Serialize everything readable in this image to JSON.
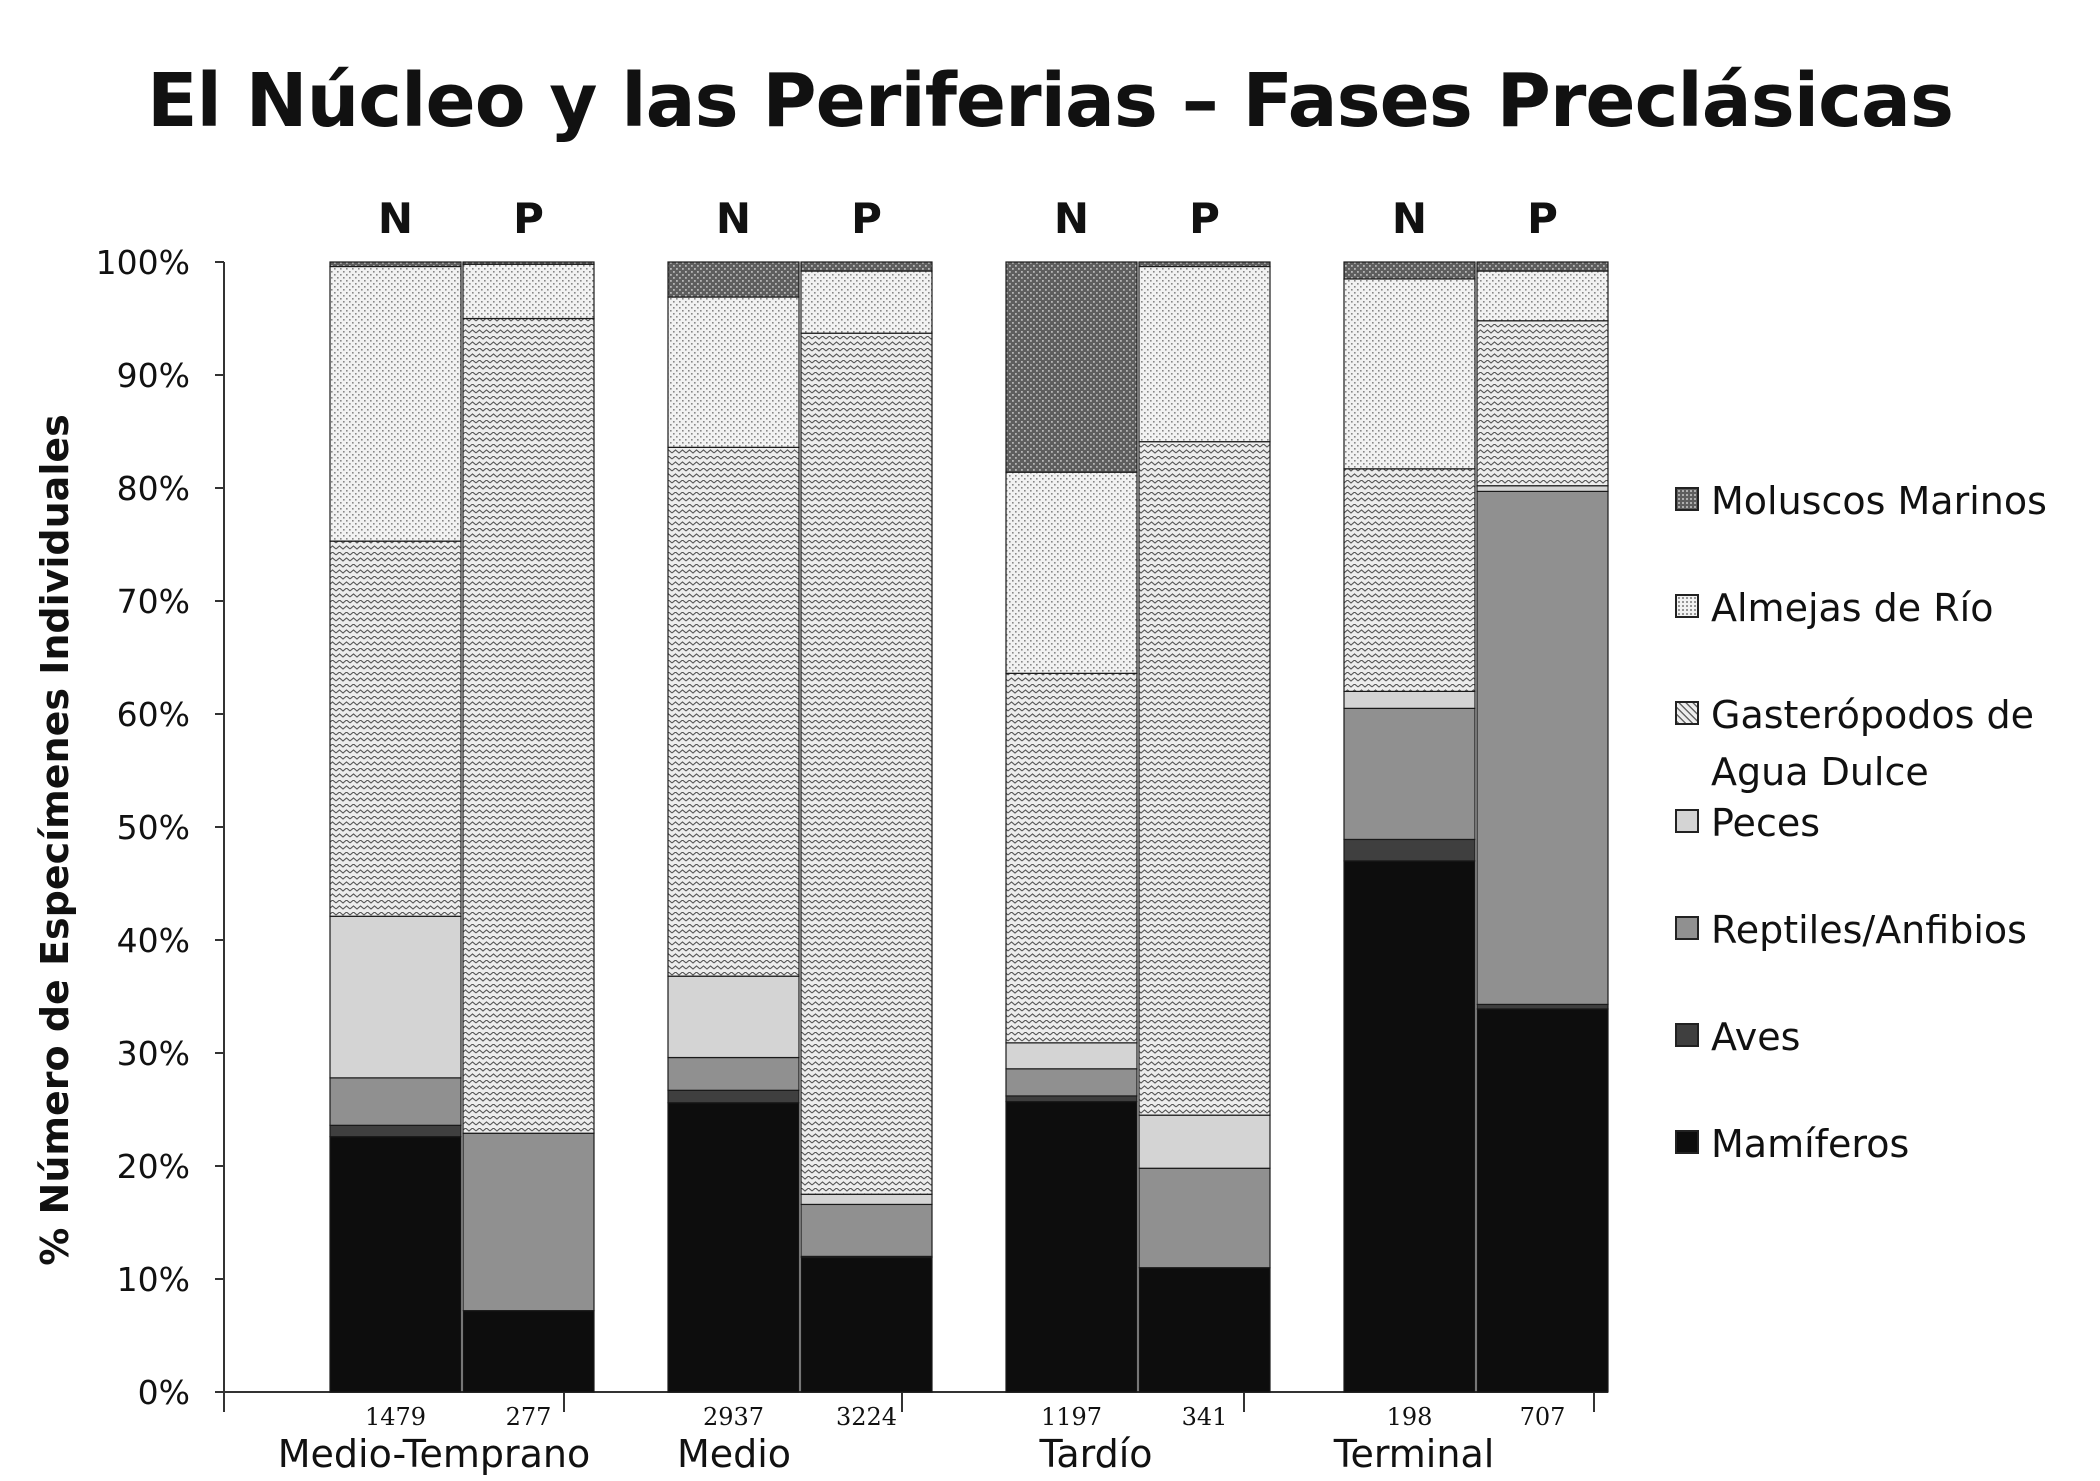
{
  "chart_data": {
    "type": "bar",
    "stacked": true,
    "title": "El Núcleo y las Periferias – Fases Preclásicas",
    "ylabel": "% Número de Especímenes Individuales",
    "ylim": [
      0,
      100
    ],
    "yticks": [
      "0%",
      "10%",
      "20%",
      "30%",
      "40%",
      "50%",
      "60%",
      "70%",
      "80%",
      "90%",
      "100%"
    ],
    "grid": false,
    "legend_position": "right",
    "groups": [
      {
        "label": "Medio-Temprano",
        "bars": [
          {
            "top": "N",
            "count": "1479",
            "values": [
              22.6,
              1.0,
              4.2,
              14.3,
              33.2,
              24.3,
              0.4
            ]
          },
          {
            "top": "P",
            "count": "277",
            "values": [
              7.2,
              0.0,
              15.7,
              0.0,
              72.1,
              4.8,
              0.2
            ]
          }
        ]
      },
      {
        "label": "Medio",
        "bars": [
          {
            "top": "N",
            "count": "2937",
            "values": [
              25.6,
              1.1,
              2.9,
              7.2,
              46.8,
              13.3,
              3.1
            ]
          },
          {
            "top": "P",
            "count": "3224",
            "values": [
              11.9,
              0.1,
              4.6,
              0.9,
              76.2,
              5.5,
              0.8
            ]
          }
        ]
      },
      {
        "label": "Tardío",
        "bars": [
          {
            "top": "N",
            "count": "1197",
            "values": [
              25.7,
              0.5,
              2.4,
              2.3,
              32.7,
              17.8,
              18.6
            ]
          },
          {
            "top": "P",
            "count": "341",
            "values": [
              11.0,
              0.0,
              8.8,
              4.7,
              59.6,
              15.5,
              0.4
            ]
          }
        ]
      },
      {
        "label": "Terminal",
        "bars": [
          {
            "top": "N",
            "count": "198",
            "values": [
              47.0,
              1.9,
              11.6,
              1.5,
              19.7,
              16.8,
              1.5
            ]
          },
          {
            "top": "P",
            "count": "707",
            "values": [
              33.9,
              0.4,
              45.4,
              0.5,
              14.6,
              4.4,
              0.8
            ]
          }
        ]
      }
    ],
    "series": [
      {
        "name": "Mamíferos",
        "color": "#0d0d0d",
        "pattern": "solid"
      },
      {
        "name": "Aves",
        "color": "#3f3f3f",
        "pattern": "solid"
      },
      {
        "name": "Reptiles/Anfibios",
        "color": "#909090",
        "pattern": "solid"
      },
      {
        "name": "Peces",
        "color": "#d4d4d4",
        "pattern": "solid"
      },
      {
        "name": "Gasterópodos de Agua Dulce",
        "color": "#ededed",
        "pattern": "waves"
      },
      {
        "name": "Almejas de Río",
        "color": "#f0f0f0",
        "pattern": "dots"
      },
      {
        "name": "Moluscos Marinos",
        "color": "#6a6a6a",
        "pattern": "dots-dark"
      }
    ]
  }
}
